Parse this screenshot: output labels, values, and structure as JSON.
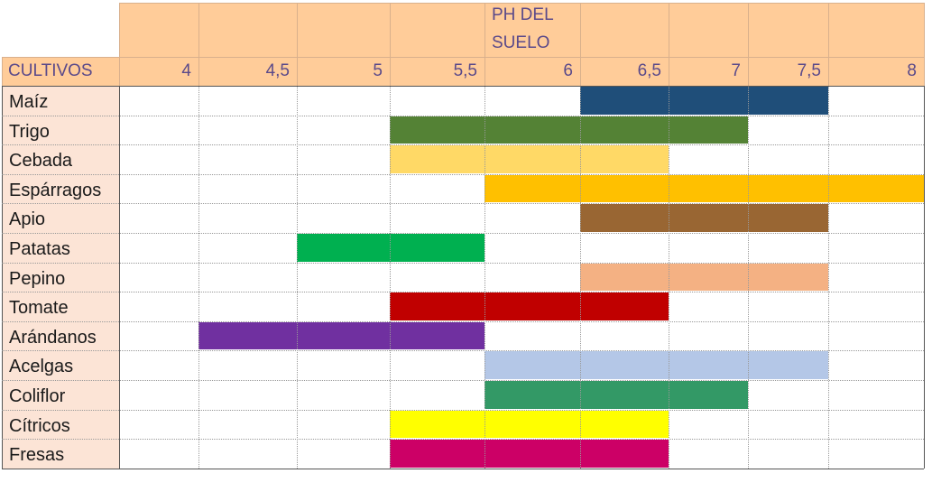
{
  "header": {
    "title_line1": "PH DEL",
    "title_line2": "SUELO",
    "first_column_label": "CULTIVOS"
  },
  "chart_data": {
    "type": "table",
    "title": "PH DEL SUELO",
    "row_header": "CULTIVOS",
    "ph_columns": [
      "4",
      "4,5",
      "5",
      "5,5",
      "6",
      "6,5",
      "7",
      "7,5",
      "8"
    ],
    "rows": [
      {
        "crop": "Maíz",
        "ph_min": 6.5,
        "ph_max": 7.5,
        "color": "#1F4E79"
      },
      {
        "crop": "Trigo",
        "ph_min": 5.5,
        "ph_max": 7.0,
        "color": "#548235"
      },
      {
        "crop": "Cebada",
        "ph_min": 5.5,
        "ph_max": 6.5,
        "color": "#FFD966"
      },
      {
        "crop": "Espárragos",
        "ph_min": 6.0,
        "ph_max": 8.0,
        "color": "#FFC000"
      },
      {
        "crop": "Apio",
        "ph_min": 6.5,
        "ph_max": 7.5,
        "color": "#996633"
      },
      {
        "crop": "Patatas",
        "ph_min": 5.0,
        "ph_max": 5.5,
        "color": "#00B050"
      },
      {
        "crop": "Pepino",
        "ph_min": 6.5,
        "ph_max": 7.5,
        "color": "#F4B183"
      },
      {
        "crop": "Tomate",
        "ph_min": 5.5,
        "ph_max": 6.5,
        "color": "#C00000"
      },
      {
        "crop": "Arándanos",
        "ph_min": 4.5,
        "ph_max": 5.5,
        "color": "#7030A0"
      },
      {
        "crop": "Acelgas",
        "ph_min": 6.0,
        "ph_max": 7.5,
        "color": "#B4C7E7"
      },
      {
        "crop": "Coliflor",
        "ph_min": 6.0,
        "ph_max": 7.0,
        "color": "#339966"
      },
      {
        "crop": "Cítricos",
        "ph_min": 5.5,
        "ph_max": 6.5,
        "color": "#FFFF00"
      },
      {
        "crop": "Fresas",
        "ph_min": 5.5,
        "ph_max": 6.5,
        "color": "#CC0066"
      }
    ]
  }
}
